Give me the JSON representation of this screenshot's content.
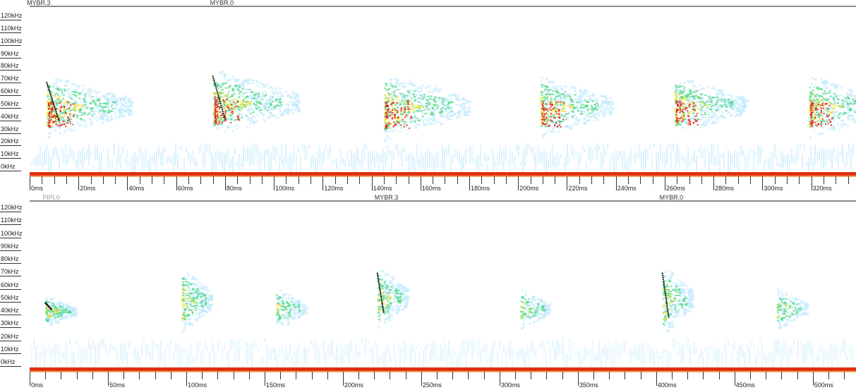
{
  "colors": {
    "background": "#ffffff",
    "header_rule": "#8a8a8a",
    "baseline_red": "#e03010",
    "baseline_orange": "#f2a25a",
    "noise_band": "#cfeefc",
    "echo_low": "#bfe9fb",
    "echo_mid": "#4fd88a",
    "echo_high": "#f3e23c",
    "echo_peak": "#e42418",
    "call_trace": "#111111"
  },
  "panels": [
    {
      "frequency_labels": [
        "120kHz",
        "110kHz",
        "100kHz",
        "90kHz",
        "80kHz",
        "70kHz",
        "60kHz",
        "50kHz",
        "40kHz",
        "30kHz",
        "20kHz",
        "10kHz",
        "0kHz"
      ],
      "species_labels": [
        {
          "text": "MYBR.3",
          "time_ms": 0
        },
        {
          "text": "MYBR.0",
          "time_ms": 75
        }
      ],
      "time_labels": [
        "0ms",
        "20ms",
        "40ms",
        "60ms",
        "80ms",
        "100ms",
        "120ms",
        "140ms",
        "160ms",
        "180ms",
        "200ms",
        "220ms",
        "240ms",
        "260ms",
        "280ms",
        "300ms",
        "320ms"
      ],
      "time_unit_ms": 20,
      "minor_divisions": 4,
      "time_max_ms": 336,
      "calls": [
        {
          "time_ms": 7,
          "duration_ms": 5,
          "f_start_khz": 70,
          "f_end_khz": 40,
          "intensity": 1.0,
          "trace": true
        },
        {
          "time_ms": 75,
          "duration_ms": 5,
          "f_start_khz": 75,
          "f_end_khz": 41,
          "intensity": 1.0,
          "trace": true
        },
        {
          "time_ms": 145,
          "duration_ms": 5,
          "f_start_khz": 72,
          "f_end_khz": 38,
          "intensity": 1.0,
          "trace": false
        },
        {
          "time_ms": 209,
          "duration_ms": 5,
          "f_start_khz": 70,
          "f_end_khz": 40,
          "intensity": 0.85,
          "trace": false
        },
        {
          "time_ms": 264,
          "duration_ms": 5,
          "f_start_khz": 70,
          "f_end_khz": 42,
          "intensity": 0.85,
          "trace": false
        },
        {
          "time_ms": 319,
          "duration_ms": 5,
          "f_start_khz": 70,
          "f_end_khz": 40,
          "intensity": 0.85,
          "trace": false
        }
      ]
    },
    {
      "frequency_labels": [
        "120kHz",
        "110kHz",
        "100kHz",
        "90kHz",
        "80kHz",
        "70kHz",
        "60kHz",
        "50kHz",
        "40kHz",
        "30kHz",
        "20kHz",
        "10kHz",
        "0kHz"
      ],
      "species_labels": [
        {
          "text": "PIPI.0",
          "time_ms": 10,
          "faint": true
        },
        {
          "text": "MYBR.3",
          "time_ms": 222
        },
        {
          "text": "MYBR.0",
          "time_ms": 404
        }
      ],
      "time_labels": [
        "0ms",
        "50ms",
        "100ms",
        "150ms",
        "200ms",
        "250ms",
        "300ms",
        "350ms",
        "400ms",
        "450ms",
        "500ms"
      ],
      "time_unit_ms": 50,
      "minor_divisions": 5,
      "time_max_ms": 524,
      "calls": [
        {
          "time_ms": 10,
          "duration_ms": 4,
          "f_start_khz": 49,
          "f_end_khz": 44,
          "intensity": 0.45,
          "trace": true
        },
        {
          "time_ms": 97,
          "duration_ms": 4,
          "f_start_khz": 70,
          "f_end_khz": 40,
          "intensity": 0.55,
          "trace": false
        },
        {
          "time_ms": 157,
          "duration_ms": 3,
          "f_start_khz": 55,
          "f_end_khz": 42,
          "intensity": 0.3,
          "trace": false
        },
        {
          "time_ms": 222,
          "duration_ms": 4,
          "f_start_khz": 72,
          "f_end_khz": 42,
          "intensity": 0.5,
          "trace": true
        },
        {
          "time_ms": 313,
          "duration_ms": 3,
          "f_start_khz": 55,
          "f_end_khz": 42,
          "intensity": 0.3,
          "trace": false
        },
        {
          "time_ms": 404,
          "duration_ms": 4,
          "f_start_khz": 72,
          "f_end_khz": 38,
          "intensity": 0.5,
          "trace": true
        },
        {
          "time_ms": 477,
          "duration_ms": 3,
          "f_start_khz": 55,
          "f_end_khz": 42,
          "intensity": 0.3,
          "trace": false
        }
      ]
    }
  ]
}
